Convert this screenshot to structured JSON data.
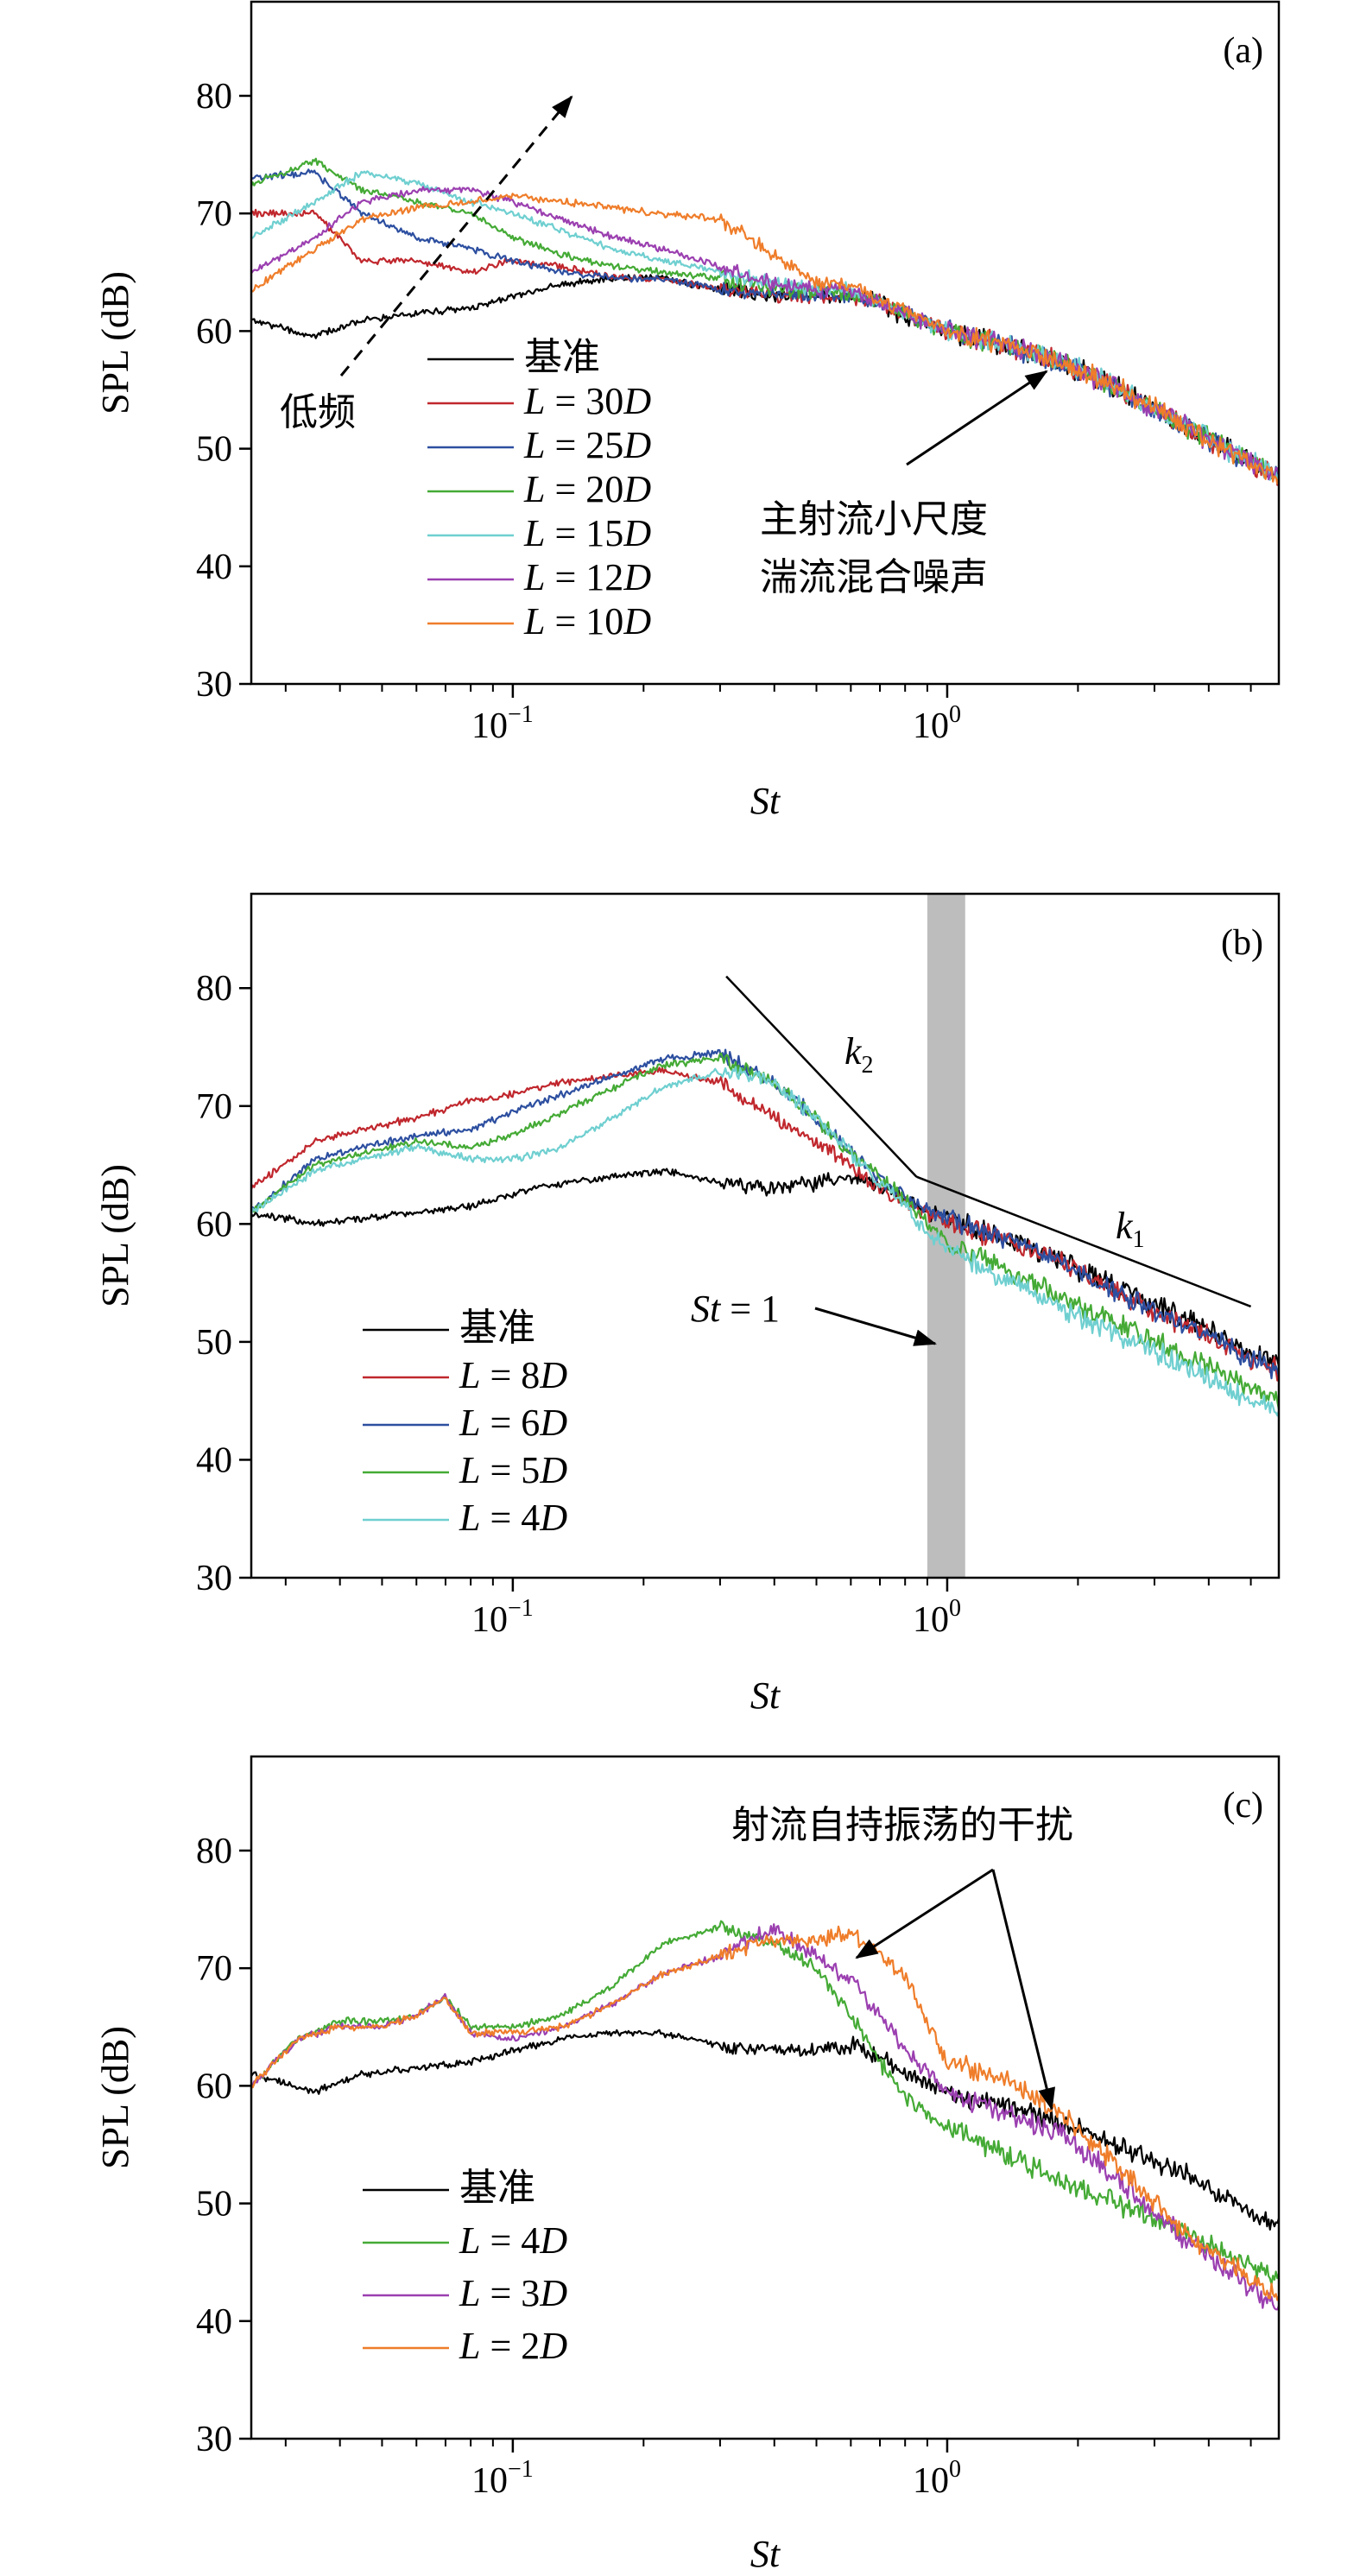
{
  "chart_data": [
    {
      "type": "line",
      "panel_label": "(a)",
      "xlabel": "St",
      "ylabel": "SPL (dB)",
      "xscale": "log",
      "xlim": [
        0.025,
        5.8
      ],
      "ylim": [
        30,
        88
      ],
      "yticks": [
        30,
        40,
        50,
        60,
        70,
        80
      ],
      "xticks": [
        {
          "value": 0.1,
          "base": "10",
          "exp": "−1"
        },
        {
          "value": 1,
          "base": "10",
          "exp": "0"
        }
      ],
      "legend_position": "lower-left",
      "series": [
        {
          "name": "基准",
          "color": "#000000",
          "x": [
            0.025,
            0.035,
            0.045,
            0.06,
            0.08,
            0.1,
            0.13,
            0.17,
            0.22,
            0.3,
            0.4,
            0.5,
            0.6,
            0.7,
            0.8,
            1.0,
            1.3,
            1.8,
            2.5,
            3.5,
            5.8
          ],
          "y": [
            61,
            59.5,
            61,
            61.5,
            62,
            63,
            64,
            64.5,
            64.5,
            63.5,
            63,
            63,
            63,
            62.5,
            61,
            60,
            59,
            57.5,
            55,
            52,
            47.5
          ]
        },
        {
          "name": "L = 30D",
          "color": "#c0272d",
          "x": [
            0.025,
            0.035,
            0.045,
            0.06,
            0.08,
            0.1,
            0.13,
            0.17,
            0.22,
            0.3,
            0.4,
            0.5,
            0.6,
            0.7,
            0.8,
            1.0,
            1.3,
            1.8,
            2.5,
            3.5,
            5.8
          ],
          "y": [
            70,
            70,
            66,
            66,
            65,
            66,
            65.5,
            64.5,
            64.5,
            63.5,
            63,
            63,
            63,
            62.5,
            61.5,
            60,
            59,
            57.5,
            55,
            52,
            47.5
          ]
        },
        {
          "name": "L = 25D",
          "color": "#2d4fa0",
          "x": [
            0.025,
            0.035,
            0.045,
            0.06,
            0.08,
            0.1,
            0.13,
            0.17,
            0.22,
            0.3,
            0.4,
            0.5,
            0.6,
            0.7,
            0.8,
            1.0,
            1.3,
            1.8,
            2.5,
            3.5,
            5.8
          ],
          "y": [
            73,
            73.5,
            70,
            68,
            67,
            66,
            65,
            64.5,
            64.5,
            63.5,
            63,
            63,
            63,
            62.5,
            61.5,
            60,
            59,
            57.5,
            55,
            52,
            47.5
          ]
        },
        {
          "name": "L = 20D",
          "color": "#44aa35",
          "x": [
            0.025,
            0.035,
            0.045,
            0.06,
            0.08,
            0.1,
            0.13,
            0.17,
            0.22,
            0.3,
            0.4,
            0.5,
            0.6,
            0.7,
            0.8,
            1.0,
            1.3,
            1.8,
            2.5,
            3.5,
            5.8
          ],
          "y": [
            72.5,
            74.5,
            72,
            71,
            70,
            68,
            66.5,
            65.5,
            65,
            64.5,
            63.5,
            63.5,
            63,
            62.5,
            61.5,
            60,
            59,
            57.5,
            55,
            52,
            47.5
          ]
        },
        {
          "name": "L = 15D",
          "color": "#6fcfd0",
          "x": [
            0.025,
            0.035,
            0.045,
            0.06,
            0.08,
            0.1,
            0.13,
            0.17,
            0.22,
            0.3,
            0.4,
            0.5,
            0.6,
            0.7,
            0.8,
            1.0,
            1.3,
            1.8,
            2.5,
            3.5,
            5.8
          ],
          "y": [
            68,
            71,
            73.5,
            72.5,
            71,
            70,
            68.5,
            67,
            66,
            65,
            64,
            63.5,
            63.5,
            62.5,
            61.5,
            60,
            59,
            57.5,
            55,
            52,
            47.5
          ]
        },
        {
          "name": "L = 12D",
          "color": "#9b3fb0",
          "x": [
            0.025,
            0.035,
            0.045,
            0.06,
            0.08,
            0.1,
            0.13,
            0.17,
            0.22,
            0.3,
            0.4,
            0.5,
            0.6,
            0.7,
            0.8,
            1.0,
            1.3,
            1.8,
            2.5,
            3.5,
            5.8
          ],
          "y": [
            65,
            68,
            71,
            72,
            72,
            71,
            69.5,
            68,
            67,
            65.5,
            64,
            63.5,
            63.5,
            62.5,
            61.5,
            60,
            59,
            57.5,
            55,
            52,
            47.5
          ]
        },
        {
          "name": "L = 10D",
          "color": "#ef7d2a",
          "x": [
            0.025,
            0.035,
            0.045,
            0.06,
            0.08,
            0.1,
            0.13,
            0.17,
            0.22,
            0.3,
            0.4,
            0.5,
            0.6,
            0.7,
            0.8,
            1.0,
            1.3,
            1.8,
            2.5,
            3.5,
            5.8
          ],
          "y": [
            63.5,
            67,
            69.5,
            70.5,
            71,
            71.5,
            71,
            70.5,
            70,
            69.5,
            66.5,
            64,
            64,
            62.5,
            62,
            60,
            59,
            57.5,
            55,
            52,
            47.5
          ]
        }
      ],
      "annotations": [
        {
          "text": "低频",
          "type": "dashed-arrow",
          "from": [
            0.08,
            61
          ],
          "to": [
            0.16,
            82
          ]
        },
        {
          "text_lines": [
            "主射流小尺度",
            "湍流混合噪声"
          ],
          "type": "arrow",
          "from": [
            0.95,
            47
          ],
          "to": [
            1.8,
            57
          ]
        }
      ]
    },
    {
      "type": "line",
      "panel_label": "(b)",
      "xlabel": "St",
      "ylabel": "SPL (dB)",
      "xscale": "log",
      "xlim": [
        0.025,
        5.8
      ],
      "ylim": [
        30,
        88
      ],
      "yticks": [
        30,
        40,
        50,
        60,
        70,
        80
      ],
      "xticks": [
        {
          "value": 0.1,
          "base": "10",
          "exp": "−1"
        },
        {
          "value": 1,
          "base": "10",
          "exp": "0"
        }
      ],
      "legend_position": "lower-left",
      "shaded_band": {
        "x": [
          0.9,
          1.1
        ],
        "color": "#bdbdbd"
      },
      "series": [
        {
          "name": "基准",
          "color": "#000000",
          "x": [
            0.025,
            0.035,
            0.045,
            0.06,
            0.08,
            0.1,
            0.13,
            0.17,
            0.22,
            0.3,
            0.4,
            0.5,
            0.6,
            0.7,
            0.8,
            0.9,
            1.0,
            1.3,
            1.8,
            2.5,
            3.5,
            5.8
          ],
          "y": [
            61,
            60,
            60.5,
            61,
            61.5,
            62.5,
            63.5,
            64,
            64.5,
            63.5,
            63,
            63.5,
            64,
            63.5,
            62,
            61,
            60.5,
            59,
            57,
            54.5,
            52,
            48
          ]
        },
        {
          "name": "L = 8D",
          "color": "#c0272d",
          "x": [
            0.025,
            0.035,
            0.045,
            0.06,
            0.08,
            0.1,
            0.13,
            0.17,
            0.22,
            0.3,
            0.4,
            0.5,
            0.6,
            0.7,
            0.8,
            0.9,
            1.0,
            1.3,
            1.8,
            2.5,
            3.5,
            5.8
          ],
          "y": [
            63,
            67,
            68,
            69,
            70.5,
            71,
            72,
            72.5,
            73,
            72,
            69,
            67,
            65,
            63,
            62,
            61,
            60,
            59,
            57,
            54,
            51.5,
            47.5
          ]
        },
        {
          "name": "L = 6D",
          "color": "#2d4fa0",
          "x": [
            0.025,
            0.035,
            0.045,
            0.06,
            0.08,
            0.1,
            0.13,
            0.17,
            0.22,
            0.3,
            0.4,
            0.5,
            0.6,
            0.7,
            0.8,
            0.9,
            1.0,
            1.3,
            1.8,
            2.5,
            3.5,
            5.8
          ],
          "y": [
            61,
            65.5,
            66.5,
            67.5,
            68,
            69.5,
            71,
            72.5,
            74,
            74.5,
            72,
            69,
            66,
            64,
            62.5,
            61,
            60.5,
            59,
            57,
            54,
            51.5,
            47.5
          ]
        },
        {
          "name": "L = 5D",
          "color": "#44aa35",
          "x": [
            0.025,
            0.035,
            0.045,
            0.06,
            0.08,
            0.1,
            0.13,
            0.17,
            0.22,
            0.3,
            0.4,
            0.5,
            0.6,
            0.7,
            0.8,
            0.9,
            1.0,
            1.3,
            1.8,
            2.5,
            3.5,
            5.8
          ],
          "y": [
            61,
            65,
            66,
            67,
            66.5,
            67.5,
            69.5,
            71.5,
            73.5,
            74,
            72,
            69,
            66,
            64,
            62,
            60,
            58.5,
            56.5,
            54,
            51.5,
            49,
            45
          ]
        },
        {
          "name": "L = 4D",
          "color": "#6fcfd0",
          "x": [
            0.025,
            0.035,
            0.045,
            0.06,
            0.08,
            0.1,
            0.13,
            0.17,
            0.22,
            0.3,
            0.4,
            0.5,
            0.6,
            0.7,
            0.8,
            0.9,
            1.0,
            1.3,
            1.8,
            2.5,
            3.5,
            5.8
          ],
          "y": [
            61,
            64.5,
            65.5,
            66.5,
            65.5,
            65.5,
            66.5,
            69,
            71.5,
            73,
            72,
            69,
            66,
            63.5,
            61.5,
            59.5,
            58,
            55.5,
            53,
            50.5,
            48,
            44
          ]
        }
      ],
      "lines": [
        {
          "label": "k2",
          "from": [
            0.31,
            81
          ],
          "to": [
            0.85,
            64
          ]
        },
        {
          "label": "k1",
          "from": [
            0.85,
            64
          ],
          "to": [
            5.0,
            53
          ]
        }
      ],
      "annotations": [
        {
          "text": "St = 1",
          "type": "arrow",
          "from": [
            0.6,
            52.5
          ],
          "to": [
            1.0,
            49.5
          ]
        }
      ]
    },
    {
      "type": "line",
      "panel_label": "(c)",
      "xlabel": "St",
      "ylabel": "SPL (dB)",
      "xscale": "log",
      "xlim": [
        0.025,
        5.8
      ],
      "ylim": [
        30,
        88
      ],
      "yticks": [
        30,
        40,
        50,
        60,
        70,
        80
      ],
      "xticks": [
        {
          "value": 0.1,
          "base": "10",
          "exp": "−1"
        },
        {
          "value": 1,
          "base": "10",
          "exp": "0"
        }
      ],
      "legend_position": "lower-left",
      "series": [
        {
          "name": "基准",
          "color": "#000000",
          "x": [
            0.025,
            0.035,
            0.045,
            0.06,
            0.08,
            0.1,
            0.13,
            0.17,
            0.22,
            0.3,
            0.4,
            0.5,
            0.6,
            0.7,
            0.8,
            1.0,
            1.3,
            1.8,
            2.5,
            3.5,
            5.8
          ],
          "y": [
            61,
            59.5,
            61,
            61.5,
            62,
            63,
            64,
            64.5,
            64.5,
            63.5,
            63,
            63,
            63.5,
            62.5,
            61,
            59.5,
            58.5,
            57,
            55,
            52.5,
            48
          ]
        },
        {
          "name": "L = 4D",
          "color": "#44aa35",
          "x": [
            0.025,
            0.032,
            0.04,
            0.05,
            0.06,
            0.07,
            0.08,
            0.1,
            0.13,
            0.17,
            0.22,
            0.3,
            0.4,
            0.5,
            0.6,
            0.7,
            0.8,
            1.0,
            1.3,
            1.8,
            2.5,
            3.5,
            5.8
          ],
          "y": [
            60,
            64,
            65.5,
            65.5,
            66,
            67.5,
            65,
            65,
            66,
            68.5,
            72,
            73.5,
            72,
            70,
            66,
            62,
            59,
            56.5,
            54.5,
            52,
            50,
            47.5,
            43.5
          ]
        },
        {
          "name": "L = 3D",
          "color": "#9b3fb0",
          "x": [
            0.025,
            0.032,
            0.04,
            0.05,
            0.06,
            0.07,
            0.08,
            0.1,
            0.13,
            0.17,
            0.22,
            0.3,
            0.4,
            0.5,
            0.6,
            0.7,
            0.8,
            1.0,
            1.3,
            1.8,
            2.5,
            3.5,
            5.8
          ],
          "y": [
            60,
            64,
            65,
            65,
            66,
            67.5,
            64.5,
            64,
            65,
            67,
            69.5,
            71,
            73.5,
            71,
            69,
            66,
            63,
            59.5,
            58,
            56,
            52,
            47,
            41
          ]
        },
        {
          "name": "L = 2D",
          "color": "#ef7d2a",
          "x": [
            0.025,
            0.032,
            0.04,
            0.05,
            0.06,
            0.07,
            0.08,
            0.1,
            0.13,
            0.17,
            0.22,
            0.3,
            0.4,
            0.5,
            0.6,
            0.7,
            0.8,
            1.0,
            1.3,
            1.8,
            2.5,
            3.5,
            5.8
          ],
          "y": [
            60,
            64,
            65,
            65,
            66,
            67.5,
            64.5,
            64.5,
            65,
            67,
            69.5,
            71,
            72.5,
            72.5,
            73,
            71,
            69.5,
            62,
            61,
            58,
            53,
            47.5,
            42
          ]
        }
      ],
      "annotations": [
        {
          "text": "射流自持振荡的干扰",
          "type": "double-arrow",
          "from": [
            1.6,
            80
          ],
          "to": [
            [
              0.65,
              70.5
            ],
            [
              1.9,
              56
            ]
          ]
        }
      ]
    }
  ]
}
